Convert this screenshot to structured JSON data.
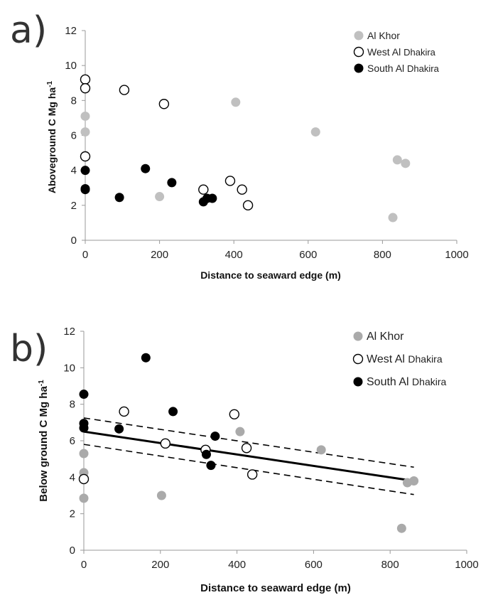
{
  "chart_data": [
    {
      "panel_label": "a)",
      "type": "scatter",
      "title": "",
      "xlabel": "Distance to seaward edge (m)",
      "ylabel_main": "Aboveground C Mg ha",
      "ylabel_sup": "-1",
      "xlim": [
        0,
        1000
      ],
      "ylim": [
        0,
        12
      ],
      "x_ticks": [
        "0",
        "200",
        "400",
        "600",
        "800",
        "1000"
      ],
      "y_ticks": [
        "0",
        "2",
        "4",
        "6",
        "8",
        "10",
        "12"
      ],
      "grid": false,
      "legend_position": "top-right",
      "legend_labels": [
        [
          "Al Khor",
          ""
        ],
        [
          "West Al ",
          "Dhakira"
        ],
        [
          "South Al ",
          "Dhakira"
        ]
      ],
      "series": [
        {
          "name": "Al Khor",
          "marker": "filled-grey",
          "color": "#c0c0c0",
          "points": [
            [
              0,
              7.1
            ],
            [
              0,
              6.2
            ],
            [
              200,
              2.5
            ],
            [
              405,
              7.9
            ],
            [
              620,
              6.2
            ],
            [
              828,
              1.3
            ],
            [
              840,
              4.6
            ],
            [
              862,
              4.4
            ]
          ]
        },
        {
          "name": "West Al Dhakira",
          "marker": "open",
          "color": "#000000",
          "points": [
            [
              0,
              9.2
            ],
            [
              0,
              8.7
            ],
            [
              0,
              4.8
            ],
            [
              105,
              8.6
            ],
            [
              212,
              7.8
            ],
            [
              318,
              2.9
            ],
            [
              390,
              3.4
            ],
            [
              422,
              2.9
            ],
            [
              438,
              2.0
            ]
          ]
        },
        {
          "name": "South Al Dhakira",
          "marker": "filled-black",
          "color": "#000000",
          "points": [
            [
              0,
              4.0
            ],
            [
              0,
              2.9
            ],
            [
              0,
              2.95
            ],
            [
              92,
              2.45
            ],
            [
              162,
              4.1
            ],
            [
              233,
              3.3
            ],
            [
              318,
              2.2
            ],
            [
              328,
              2.4
            ],
            [
              342,
              2.4
            ]
          ]
        }
      ]
    },
    {
      "panel_label": "b)",
      "type": "scatter",
      "title": "",
      "xlabel": "Distance to seaward edge (m)",
      "ylabel_main": "Below ground C Mg ha",
      "ylabel_sup": "-1",
      "xlim": [
        0,
        1000
      ],
      "ylim": [
        0,
        12
      ],
      "x_ticks": [
        "0",
        "200",
        "400",
        "600",
        "800",
        "1000"
      ],
      "y_ticks": [
        "0",
        "2",
        "4",
        "6",
        "8",
        "10",
        "12"
      ],
      "grid": false,
      "legend_position": "top-right",
      "legend_labels": [
        [
          "Al Khor",
          ""
        ],
        [
          "West Al ",
          "Dhakira"
        ],
        [
          "South Al ",
          "Dhakira"
        ]
      ],
      "series": [
        {
          "name": "Al Khor",
          "marker": "filled-grey",
          "color": "#aaaaaa",
          "points": [
            [
              0,
              5.3
            ],
            [
              0,
              4.25
            ],
            [
              0,
              2.85
            ],
            [
              203,
              3.0
            ],
            [
              408,
              6.5
            ],
            [
              620,
              5.5
            ],
            [
              830,
              1.2
            ],
            [
              845,
              3.7
            ],
            [
              862,
              3.8
            ]
          ]
        },
        {
          "name": "West Al Dhakira",
          "marker": "open",
          "color": "#000000",
          "points": [
            [
              0,
              3.9
            ],
            [
              105,
              7.6
            ],
            [
              213,
              5.85
            ],
            [
              318,
              5.5
            ],
            [
              393,
              7.45
            ],
            [
              425,
              5.6
            ],
            [
              440,
              4.15
            ]
          ]
        },
        {
          "name": "South Al Dhakira",
          "marker": "filled-black",
          "color": "#000000",
          "points": [
            [
              0,
              8.55
            ],
            [
              0,
              6.95
            ],
            [
              0,
              6.7
            ],
            [
              92,
              6.65
            ],
            [
              162,
              10.55
            ],
            [
              233,
              7.6
            ],
            [
              320,
              5.25
            ],
            [
              332,
              4.65
            ],
            [
              343,
              6.25
            ]
          ]
        }
      ],
      "regression": {
        "x_range": [
          0,
          862
        ],
        "y_start": 6.5,
        "y_end": 3.8
      },
      "confidence_band": {
        "upper": [
          7.25,
          4.55
        ],
        "lower": [
          5.8,
          3.05
        ]
      }
    }
  ]
}
